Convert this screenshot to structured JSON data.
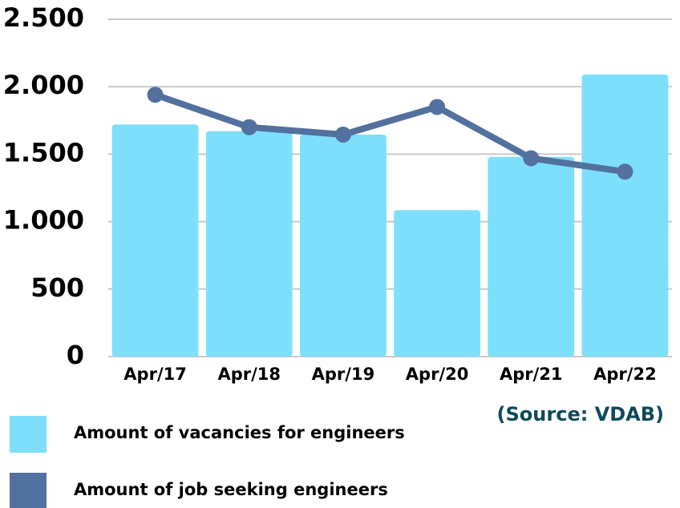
{
  "chart_data": {
    "type": "bar-line",
    "categories": [
      "Apr/17",
      "Apr/18",
      "Apr/19",
      "Apr/20",
      "Apr/21",
      "Apr/22"
    ],
    "series": [
      {
        "name": "Amount of vacancies for engineers",
        "type": "bar",
        "color": "#7ddffc",
        "values": [
          1720,
          1670,
          1645,
          1085,
          1480,
          2090
        ]
      },
      {
        "name": "Amount of job seeking engineers",
        "type": "line",
        "color": "#53719e",
        "values": [
          1940,
          1700,
          1645,
          1850,
          1470,
          1370
        ]
      }
    ],
    "ylim": [
      0,
      2500
    ],
    "yticks": [
      0,
      500,
      {
        "value": 1000,
        "label": "1.000"
      },
      {
        "value": 1500,
        "label": "1.500"
      },
      {
        "value": 2000,
        "label": "2.000"
      },
      {
        "value": 2500,
        "label": "2.500"
      }
    ],
    "grid": true,
    "annotation": "(Source: VDAB)"
  }
}
